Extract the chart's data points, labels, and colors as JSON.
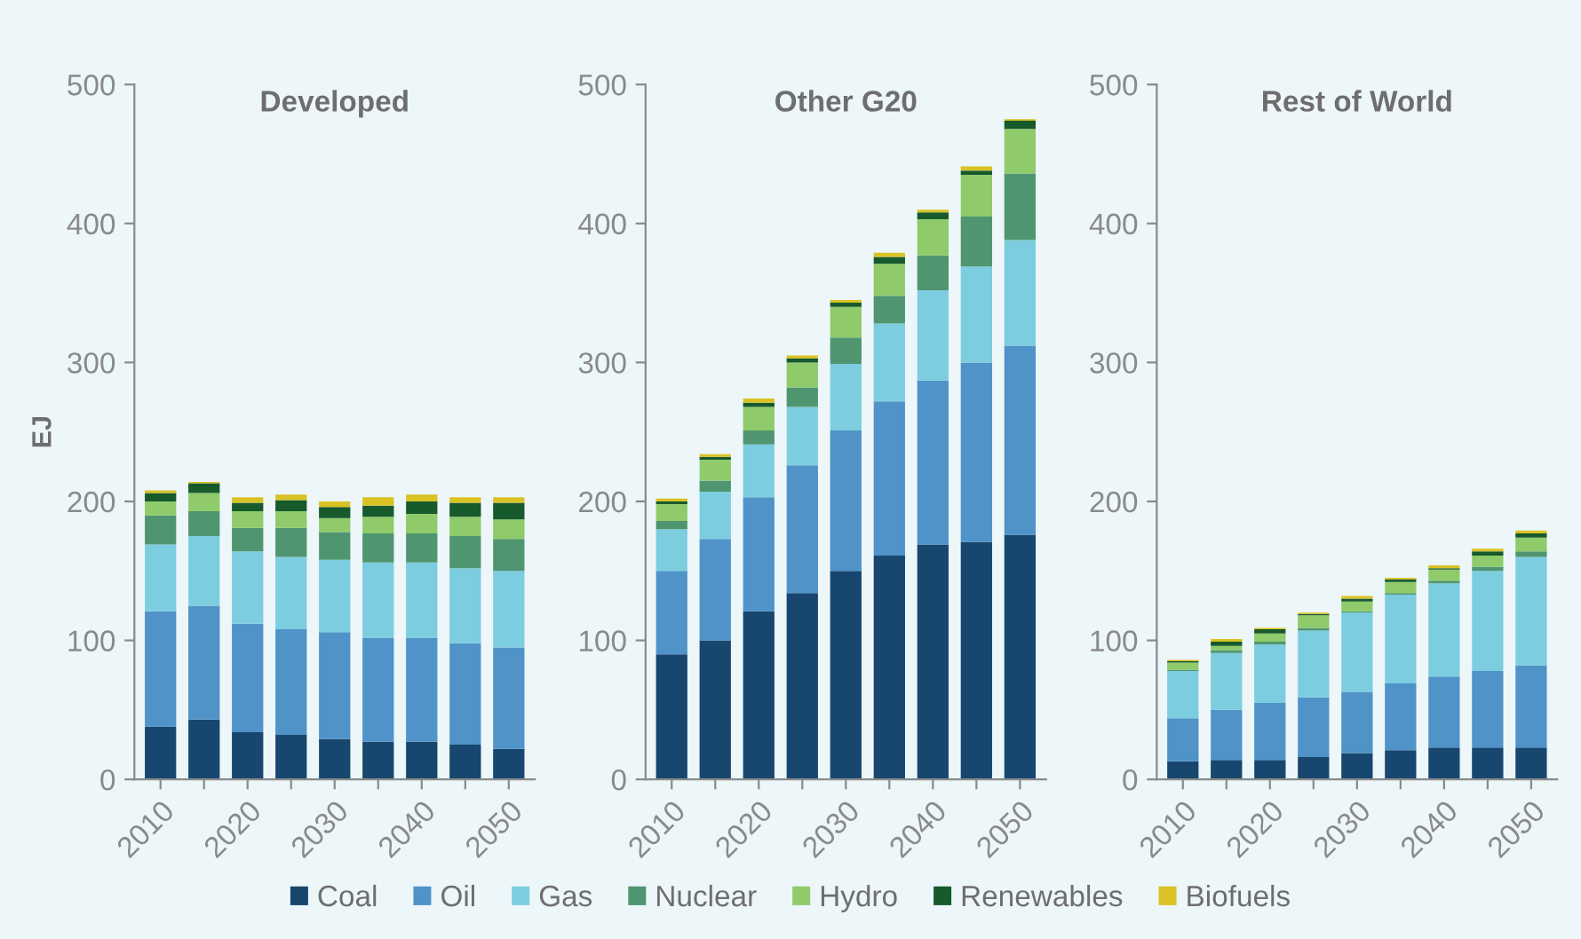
{
  "chart_data": [
    {
      "type": "bar",
      "stacked": true,
      "title": "Developed",
      "ylabel": "EJ",
      "categories": [
        "2010",
        null,
        "2020",
        null,
        "2030",
        null,
        "2040",
        null,
        "2050"
      ],
      "ylim": [
        0,
        500
      ],
      "yticks": [
        0,
        100,
        200,
        300,
        400,
        500
      ],
      "grid": false,
      "legend": "bottom",
      "series": [
        {
          "name": "Coal",
          "color": "#17476f",
          "values": [
            38,
            43,
            34,
            32,
            29,
            27,
            27,
            25,
            22
          ]
        },
        {
          "name": "Oil",
          "color": "#4f93c8",
          "values": [
            83,
            82,
            78,
            76,
            77,
            75,
            75,
            73,
            73
          ]
        },
        {
          "name": "Gas",
          "color": "#7dcde0",
          "values": [
            48,
            50,
            52,
            52,
            52,
            54,
            54,
            54,
            55
          ]
        },
        {
          "name": "Nuclear",
          "color": "#4f9670",
          "values": [
            21,
            18,
            17,
            21,
            20,
            21,
            21,
            23,
            23
          ]
        },
        {
          "name": "Hydro",
          "color": "#8fcb6a",
          "values": [
            10,
            13,
            12,
            12,
            10,
            12,
            14,
            14,
            14
          ]
        },
        {
          "name": "Renewables",
          "color": "#175a2c",
          "values": [
            6,
            7,
            6,
            8,
            8,
            8,
            9,
            10,
            12
          ]
        },
        {
          "name": "Biofuels",
          "color": "#d9c224",
          "values": [
            2,
            1,
            4,
            4,
            4,
            6,
            5,
            4,
            4
          ]
        }
      ]
    },
    {
      "type": "bar",
      "stacked": true,
      "title": "Other G20",
      "categories": [
        "2010",
        null,
        "2020",
        null,
        "2030",
        null,
        "2040",
        null,
        "2050"
      ],
      "ylim": [
        0,
        500
      ],
      "yticks": [
        0,
        100,
        200,
        300,
        400,
        500
      ],
      "grid": false,
      "series": [
        {
          "color": "#17476f",
          "values": [
            90,
            100,
            121,
            134,
            150,
            161,
            169,
            171,
            176
          ]
        },
        {
          "color": "#4f93c8",
          "values": [
            60,
            73,
            82,
            92,
            101,
            111,
            118,
            129,
            136
          ]
        },
        {
          "color": "#7dcde0",
          "values": [
            30,
            34,
            38,
            42,
            48,
            56,
            65,
            69,
            76
          ]
        },
        {
          "color": "#4f9670",
          "values": [
            6,
            8,
            10,
            14,
            19,
            20,
            25,
            36,
            48
          ]
        },
        {
          "color": "#8fcb6a",
          "values": [
            12,
            15,
            17,
            18,
            22,
            23,
            26,
            30,
            32
          ]
        },
        {
          "color": "#175a2c",
          "values": [
            2,
            2,
            3,
            3,
            3,
            5,
            5,
            3,
            6
          ]
        },
        {
          "color": "#d9c224",
          "values": [
            2,
            2,
            3,
            2,
            2,
            3,
            2,
            3,
            1
          ]
        }
      ]
    },
    {
      "type": "bar",
      "stacked": true,
      "title": "Rest of World",
      "categories": [
        "2010",
        null,
        "2020",
        null,
        "2030",
        null,
        "2040",
        null,
        "2050"
      ],
      "ylim": [
        0,
        500
      ],
      "yticks": [
        0,
        100,
        200,
        300,
        400,
        500
      ],
      "grid": false,
      "series": [
        {
          "color": "#17476f",
          "values": [
            13,
            14,
            14,
            16,
            19,
            21,
            23,
            23,
            23
          ]
        },
        {
          "color": "#4f93c8",
          "values": [
            31,
            36,
            41,
            43,
            44,
            48,
            51,
            55,
            59
          ]
        },
        {
          "color": "#7dcde0",
          "values": [
            34,
            41,
            42,
            48,
            57,
            64,
            67,
            72,
            78
          ]
        },
        {
          "color": "#4f9670",
          "values": [
            1,
            2,
            2,
            2,
            1,
            1,
            2,
            3,
            4
          ]
        },
        {
          "color": "#8fcb6a",
          "values": [
            5,
            3,
            6,
            9,
            7,
            8,
            8,
            8,
            10
          ]
        },
        {
          "color": "#175a2c",
          "values": [
            1,
            3,
            3,
            1,
            2,
            2,
            1,
            3,
            3
          ]
        },
        {
          "color": "#d9c224",
          "values": [
            1,
            2,
            1,
            1,
            2,
            1,
            2,
            2,
            2
          ]
        }
      ]
    }
  ]
}
